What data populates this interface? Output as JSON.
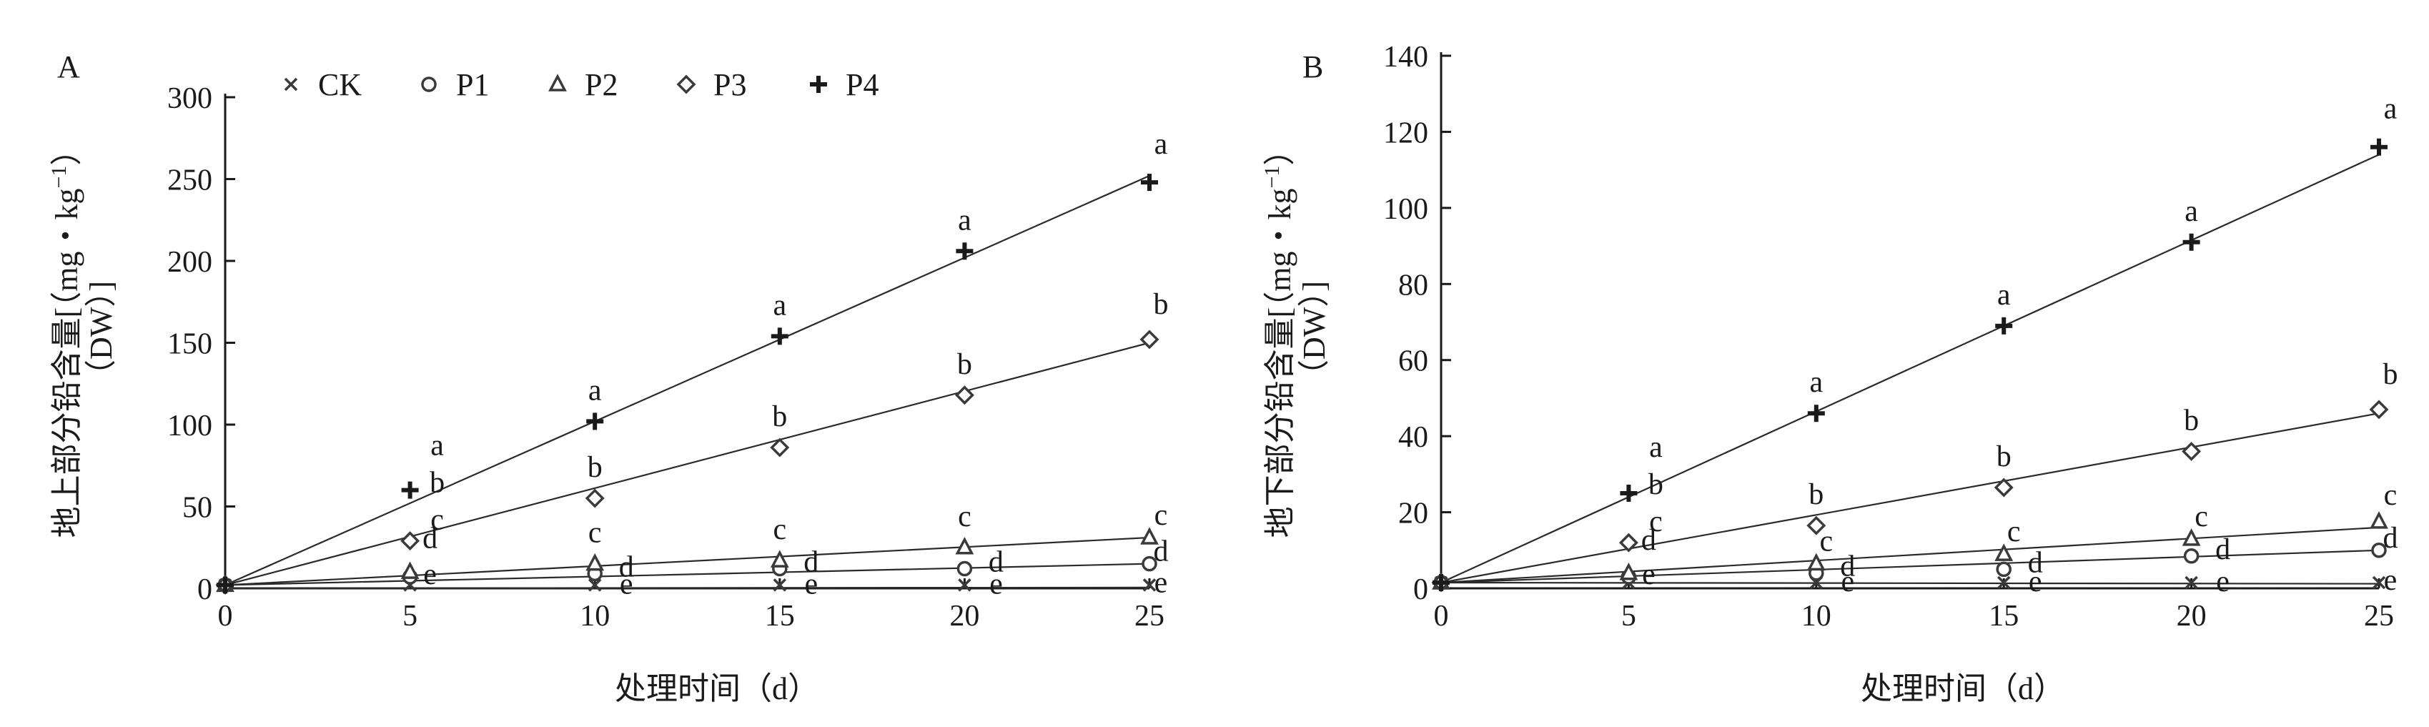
{
  "chart_data": [
    {
      "panel_label": "A",
      "type": "scatter",
      "xlabel": "处理时间（d）",
      "ylabel_line1": "地上部分铅含量[（mg・kg",
      "ylabel_sup": "−1",
      "ylabel_line1_end": "）",
      "ylabel_line2": "（DW）]",
      "xlim": [
        0,
        25
      ],
      "ylim": [
        0,
        300
      ],
      "xticks": [
        0,
        5,
        10,
        15,
        20,
        25
      ],
      "yticks": [
        0,
        50,
        100,
        150,
        200,
        250,
        300
      ],
      "legend": [
        {
          "name": "CK",
          "marker": "x"
        },
        {
          "name": "P1",
          "marker": "circle"
        },
        {
          "name": "P2",
          "marker": "triangle"
        },
        {
          "name": "P3",
          "marker": "diamond"
        },
        {
          "name": "P4",
          "marker": "plus"
        }
      ],
      "x": [
        0,
        5,
        10,
        15,
        20,
        25
      ],
      "series": [
        {
          "name": "CK",
          "marker": "x",
          "values": [
            2,
            2,
            2,
            2,
            2,
            2
          ],
          "fit": [
            0,
            0.5
          ],
          "labels": [
            "",
            "",
            "e",
            "e",
            "e",
            "e"
          ]
        },
        {
          "name": "P1",
          "marker": "circle",
          "values": [
            2,
            7,
            9,
            12,
            12,
            15
          ],
          "fit": [
            2,
            15
          ],
          "labels": [
            "",
            "e",
            "d",
            "d",
            "d",
            "d"
          ]
        },
        {
          "name": "P2",
          "marker": "triangle",
          "values": [
            2,
            10,
            15,
            17,
            25,
            31
          ],
          "fit": [
            2,
            31
          ],
          "labels": [
            "",
            "",
            "c",
            "c",
            "c",
            "c"
          ]
        },
        {
          "name": "P3",
          "marker": "diamond",
          "values": [
            2,
            29,
            55,
            86,
            118,
            152
          ],
          "fit": [
            2,
            150
          ],
          "labels": [
            "",
            "d",
            "b",
            "b",
            "b",
            "b"
          ]
        },
        {
          "name": "P4",
          "marker": "plus",
          "values": [
            2,
            60,
            102,
            154,
            206,
            248
          ],
          "fit": [
            2,
            252
          ],
          "labels": [
            "",
            "",
            "a",
            "a",
            "a",
            "a"
          ]
        }
      ],
      "extra_labels_x5": [
        "a",
        "b",
        "c"
      ]
    },
    {
      "panel_label": "B",
      "type": "scatter",
      "xlabel": "处理时间（d）",
      "ylabel_line1": "地下部分铅含量[（mg・kg",
      "ylabel_sup": "−1",
      "ylabel_line1_end": "）",
      "ylabel_line2": "（DW）]",
      "xlim": [
        0,
        25
      ],
      "ylim": [
        0,
        140
      ],
      "xticks": [
        0,
        5,
        10,
        15,
        20,
        25
      ],
      "yticks": [
        0,
        20,
        40,
        60,
        80,
        100,
        120,
        140
      ],
      "x": [
        0,
        5,
        10,
        15,
        20,
        25
      ],
      "series": [
        {
          "name": "CK",
          "marker": "x",
          "values": [
            1.5,
            1.5,
            1.5,
            1.5,
            1.5,
            1.5
          ],
          "fit": [
            1.5,
            1.2
          ],
          "labels": [
            "",
            "",
            "e",
            "e",
            "e",
            "e"
          ]
        },
        {
          "name": "P1",
          "marker": "circle",
          "values": [
            1.5,
            3,
            4,
            5,
            8.5,
            10
          ],
          "fit": [
            1.5,
            10
          ],
          "labels": [
            "",
            "e",
            "d",
            "d",
            "d",
            "d"
          ]
        },
        {
          "name": "P2",
          "marker": "triangle",
          "values": [
            1.5,
            4,
            6.5,
            9,
            13,
            17.5
          ],
          "fit": [
            1.5,
            16
          ],
          "labels": [
            "",
            "",
            "c",
            "c",
            "c",
            "c"
          ]
        },
        {
          "name": "P3",
          "marker": "diamond",
          "values": [
            1.5,
            12,
            16.5,
            26.5,
            36,
            47
          ],
          "fit": [
            1.5,
            46
          ],
          "labels": [
            "",
            "d",
            "b",
            "b",
            "b",
            "b"
          ]
        },
        {
          "name": "P4",
          "marker": "plus",
          "values": [
            1.5,
            25,
            46,
            69,
            91,
            116
          ],
          "fit": [
            1.5,
            114
          ],
          "labels": [
            "",
            "",
            "a",
            "a",
            "a",
            "a"
          ]
        }
      ],
      "extra_labels_x5": [
        "a",
        "b",
        "c"
      ]
    }
  ]
}
